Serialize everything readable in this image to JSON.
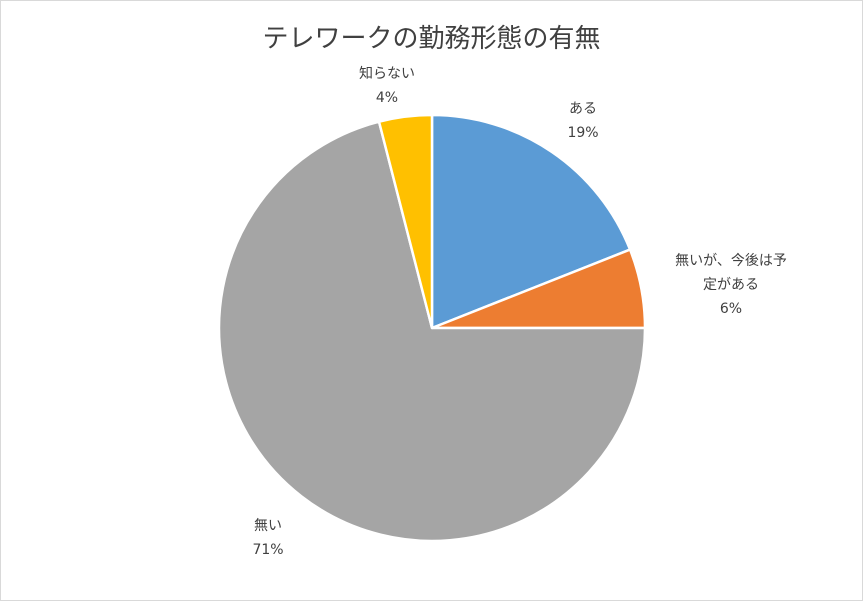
{
  "chart_data": {
    "type": "pie",
    "title": "テレワークの勤務形態の有無",
    "slices": [
      {
        "label": "ある",
        "lines": [
          "ある"
        ],
        "value": 19,
        "pct_text": "19%",
        "color": "#5b9bd5"
      },
      {
        "label": "無いが、今後は予定がある",
        "lines": [
          "無いが、今後は予",
          "定がある"
        ],
        "value": 6,
        "pct_text": "6%",
        "color": "#ed7d31"
      },
      {
        "label": "無い",
        "lines": [
          "無い"
        ],
        "value": 71,
        "pct_text": "71%",
        "color": "#a5a5a5"
      },
      {
        "label": "知らない",
        "lines": [
          "知らない"
        ],
        "value": 4,
        "pct_text": "4%",
        "color": "#ffc000"
      }
    ],
    "start": "12 o'clock",
    "direction": "clockwise",
    "legend": "none"
  }
}
